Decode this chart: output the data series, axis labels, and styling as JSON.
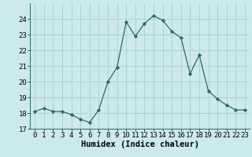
{
  "x": [
    0,
    1,
    2,
    3,
    4,
    5,
    6,
    7,
    8,
    9,
    10,
    11,
    12,
    13,
    14,
    15,
    16,
    17,
    18,
    19,
    20,
    21,
    22,
    23
  ],
  "y": [
    18.1,
    18.3,
    18.1,
    18.1,
    17.9,
    17.6,
    17.4,
    18.2,
    20.0,
    20.9,
    23.8,
    22.9,
    23.7,
    24.2,
    23.9,
    23.2,
    22.8,
    20.5,
    21.7,
    19.4,
    18.9,
    18.5,
    18.2,
    18.2
  ],
  "xlabel": "Humidex (Indice chaleur)",
  "ylim": [
    17,
    25
  ],
  "xlim": [
    -0.5,
    23.5
  ],
  "yticks": [
    17,
    18,
    19,
    20,
    21,
    22,
    23,
    24
  ],
  "xticks": [
    0,
    1,
    2,
    3,
    4,
    5,
    6,
    7,
    8,
    9,
    10,
    11,
    12,
    13,
    14,
    15,
    16,
    17,
    18,
    19,
    20,
    21,
    22,
    23
  ],
  "line_color": "#2d6b5e",
  "marker": "D",
  "marker_size": 2.2,
  "bg_color": "#cceaea",
  "grid_color": "#aacece",
  "xlabel_fontsize": 7.5,
  "tick_fontsize": 6.5
}
